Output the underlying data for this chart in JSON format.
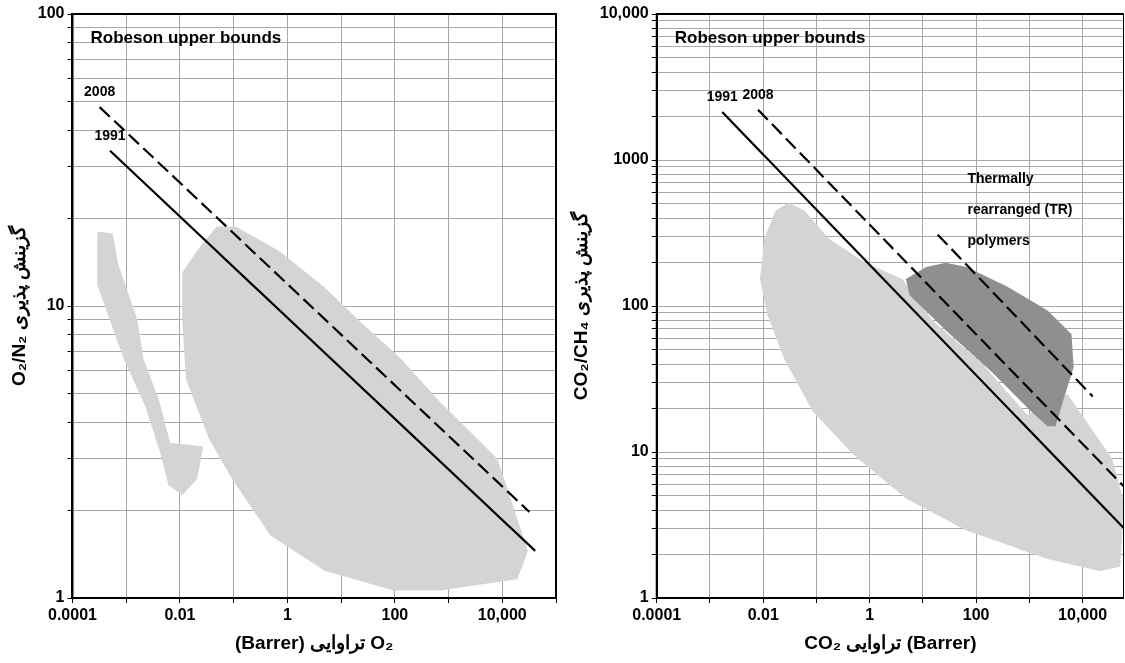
{
  "chart_data": [
    {
      "type": "line",
      "xlabel": "(Barrer) تراوایی O₂",
      "ylabel": "O₂/N₂ گزینش پذیری",
      "log": "xy",
      "grid": true,
      "legend": false,
      "marker": "none",
      "xlim": [
        0.0001,
        100000
      ],
      "ylim": [
        1,
        100
      ],
      "xticks": [
        0.0001,
        {
          "value": 0.001,
          "label": null
        },
        0.01,
        {
          "value": 0.1,
          "label": null
        },
        1,
        {
          "value": 10,
          "label": null
        },
        100,
        {
          "value": 1000,
          "label": null
        },
        {
          "value": 10000,
          "label": "10,000"
        },
        {
          "value": 100000,
          "label": null
        }
      ],
      "yticks": [
        1,
        {
          "value": 2,
          "label": null
        },
        {
          "value": 3,
          "label": null
        },
        {
          "value": 4,
          "label": null
        },
        {
          "value": 5,
          "label": null
        },
        {
          "value": 6,
          "label": null
        },
        {
          "value": 7,
          "label": null
        },
        {
          "value": 8,
          "label": null
        },
        {
          "value": 9,
          "label": null
        },
        10,
        {
          "value": 20,
          "label": null
        },
        {
          "value": 30,
          "label": null
        },
        {
          "value": 40,
          "label": null
        },
        {
          "value": 50,
          "label": null
        },
        {
          "value": 60,
          "label": null
        },
        {
          "value": 70,
          "label": null
        },
        {
          "value": 80,
          "label": null
        },
        {
          "value": 90,
          "label": null
        },
        100
      ],
      "series": [
        {
          "type": "area",
          "color": "#d4d4d4",
          "x": [
            0.00029,
            0.00056,
            0.0007,
            0.0016,
            0.0021,
            0.004,
            0.0066,
            0.014,
            0.027,
            0.021,
            0.011,
            0.0061,
            0.0044,
            0.0023,
            0.0009,
            0.0004,
            0.00029
          ],
          "values": [
            18,
            17.7,
            14,
            9,
            6.6,
            4.8,
            3.4,
            3.35,
            3.3,
            2.56,
            2.25,
            2.44,
            3.1,
            4.5,
            6.6,
            10,
            11.8
          ]
        },
        {
          "type": "area",
          "color": "#d4d4d4",
          "x": [
            0.011,
            0.021,
            0.048,
            0.11,
            0.68,
            4.9,
            25,
            130,
            690,
            8100,
            30000,
            19000,
            690,
            95,
            4.9,
            0.48,
            0.093,
            0.035,
            0.013,
            0.011
          ],
          "values": [
            13,
            15.5,
            18.7,
            18.7,
            15.5,
            11.6,
            8.7,
            6.6,
            4.7,
            3.0,
            1.45,
            1.16,
            1.06,
            1.06,
            1.24,
            1.64,
            2.56,
            3.5,
            5.6,
            9
          ]
        },
        {
          "name": "1991",
          "color": "#000000",
          "line_style": "solid",
          "x": [
            0.0005,
            41000
          ],
          "values": [
            34,
            1.45
          ]
        },
        {
          "name": "2008",
          "color": "#000000",
          "line_style": "dashed",
          "x": [
            0.00032,
            32000
          ],
          "values": [
            48,
            1.97
          ]
        }
      ],
      "annotations": [
        "Robeson upper bounds"
      ]
    },
    {
      "type": "line",
      "xlabel": "CO₂ تراوایی (Barrer)",
      "ylabel": "CO₂/CH₄ گزینش پذیری",
      "log": "xy",
      "grid": true,
      "legend": false,
      "marker": "none",
      "xlim": [
        0.0001,
        60000
      ],
      "ylim": [
        1,
        10000
      ],
      "xticks": [
        0.0001,
        {
          "value": 0.001,
          "label": null
        },
        0.01,
        {
          "value": 0.1,
          "label": null
        },
        1,
        {
          "value": 10,
          "label": null
        },
        100,
        {
          "value": 1000,
          "label": null
        },
        {
          "value": 10000,
          "label": "10,000"
        }
      ],
      "yticks": [
        1,
        {
          "value": 2,
          "label": null
        },
        {
          "value": 3,
          "label": null
        },
        {
          "value": 4,
          "label": null
        },
        {
          "value": 5,
          "label": null
        },
        {
          "value": 6,
          "label": null
        },
        {
          "value": 7,
          "label": null
        },
        {
          "value": 8,
          "label": null
        },
        {
          "value": 9,
          "label": null
        },
        10,
        {
          "value": 20,
          "label": null
        },
        {
          "value": 30,
          "label": null
        },
        {
          "value": 40,
          "label": null
        },
        {
          "value": 50,
          "label": null
        },
        {
          "value": 60,
          "label": null
        },
        {
          "value": 70,
          "label": null
        },
        {
          "value": 80,
          "label": null
        },
        {
          "value": 90,
          "label": null
        },
        100,
        {
          "value": 200,
          "label": null
        },
        {
          "value": 300,
          "label": null
        },
        {
          "value": 400,
          "label": null
        },
        {
          "value": 500,
          "label": null
        },
        {
          "value": 600,
          "label": null
        },
        {
          "value": 700,
          "label": null
        },
        {
          "value": 800,
          "label": null
        },
        {
          "value": 900,
          "label": null
        },
        1000,
        {
          "value": 2000,
          "label": null
        },
        {
          "value": 3000,
          "label": null
        },
        {
          "value": 4000,
          "label": null
        },
        {
          "value": 5000,
          "label": null
        },
        {
          "value": 6000,
          "label": null
        },
        {
          "value": 7000,
          "label": null
        },
        {
          "value": 8000,
          "label": null
        },
        {
          "value": 9000,
          "label": null
        },
        {
          "value": 10000,
          "label": "10,000"
        }
      ],
      "series": [
        {
          "type": "area",
          "color": "#d4d4d4",
          "x": [
            0.0105,
            0.017,
            0.03,
            0.06,
            0.17,
            0.83,
            4.1,
            16,
            132,
            910,
            5200,
            36000,
            60000,
            51000,
            21000,
            2200,
            66,
            4.8,
            0.49,
            0.085,
            0.025,
            0.012,
            0.0087
          ],
          "values": [
            290,
            450,
            510,
            450,
            290,
            198,
            153,
            78,
            40,
            18,
            25,
            9,
            4.5,
            1.64,
            1.53,
            1.85,
            2.9,
            4.8,
            9.6,
            19,
            43,
            87,
            153
          ]
        },
        {
          "type": "area",
          "color": "#8f8f8f",
          "x": [
            4.8,
            11.5,
            27,
            66,
            380,
            2200,
            6200,
            6800,
            4400,
            3100,
            2200,
            1070,
            186,
            27,
            5.6
          ],
          "values": [
            153,
            185,
            198,
            185,
            136,
            93,
            64,
            38,
            23,
            15,
            15,
            19,
            36,
            68,
            119
          ]
        },
        {
          "name": "1991",
          "color": "#000000",
          "line_style": "solid",
          "x": [
            0.0017,
            60000
          ],
          "values": [
            2130,
            3.0
          ]
        },
        {
          "name": "2008",
          "color": "#000000",
          "line_style": "dashed",
          "x": [
            0.008,
            60000
          ],
          "values": [
            2210,
            5.8
          ]
        },
        {
          "color": "#000000",
          "line_style": "dashed",
          "x": [
            19,
            15500
          ],
          "values": [
            308,
            24
          ]
        }
      ],
      "annotations": [
        "Robeson upper bounds",
        "Thermally rearranged (TR) polymers"
      ]
    }
  ]
}
